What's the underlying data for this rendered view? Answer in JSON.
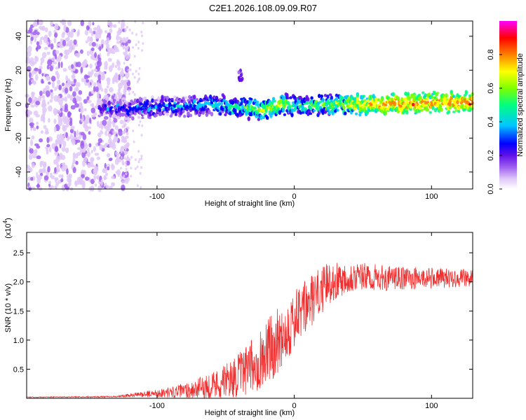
{
  "title": "C2E1.2026.108.09.09.R07",
  "chart_data": [
    {
      "type": "heatmap",
      "xlabel": "Height of straight line (km)",
      "ylabel": "Frequency (Hz)",
      "xlim": [
        -195,
        130
      ],
      "ylim": [
        -50,
        49
      ],
      "x_ticks": [
        -100,
        0,
        100
      ],
      "y_ticks": [
        -40,
        -20,
        0,
        20,
        40
      ],
      "x_tick_labels": [
        "-100",
        "0",
        "100"
      ],
      "y_tick_labels": [
        "-40",
        "-20",
        "0",
        "20",
        "40"
      ],
      "colorbar": {
        "label": "Normalized spectral amplitude",
        "range": [
          0,
          1
        ],
        "ticks": [
          0.0,
          0.2,
          0.4,
          0.6,
          0.8
        ],
        "tick_labels": [
          "0.0",
          "0.2",
          "0.4",
          "0.6",
          "0.8"
        ],
        "colors": [
          "#ffffff",
          "#e0c8f8",
          "#a060f0",
          "#6010e8",
          "#0000ff",
          "#00c8ff",
          "#00ff80",
          "#80ff00",
          "#ffff00",
          "#ff8000",
          "#ff0000",
          "#ff00ff"
        ]
      },
      "ridge": [
        {
          "x": -140,
          "y": -2,
          "amp": 0.35
        },
        {
          "x": -120,
          "y": -3,
          "amp": 0.4
        },
        {
          "x": -100,
          "y": -2,
          "amp": 0.45
        },
        {
          "x": -80,
          "y": -1,
          "amp": 0.45
        },
        {
          "x": -60,
          "y": 0,
          "amp": 0.5
        },
        {
          "x": -40,
          "y": -2,
          "amp": 0.55
        },
        {
          "x": -20,
          "y": -3,
          "amp": 0.7
        },
        {
          "x": -10,
          "y": 0,
          "amp": 0.7
        },
        {
          "x": 0,
          "y": -1,
          "amp": 0.55
        },
        {
          "x": 20,
          "y": -1,
          "amp": 0.6
        },
        {
          "x": 40,
          "y": 0,
          "amp": 0.7
        },
        {
          "x": 60,
          "y": 0,
          "amp": 0.8
        },
        {
          "x": 80,
          "y": 0,
          "amp": 0.85
        },
        {
          "x": 100,
          "y": 1,
          "amp": 0.8
        },
        {
          "x": 130,
          "y": 1,
          "amp": 0.85
        }
      ],
      "noise_region_x": [
        -195,
        -130
      ],
      "feature": {
        "x": -39,
        "y": 17,
        "amp": 0.3
      }
    },
    {
      "type": "line",
      "xlabel": "Height of straight line (km)",
      "ylabel": "SNR (10 * v/v)",
      "y_multiplier": "(x10",
      "y_multiplier_exp": "4",
      "y_multiplier_close": ")",
      "xlim": [
        -195,
        130
      ],
      "ylim": [
        0,
        2.85
      ],
      "x_ticks": [
        -100,
        0,
        100
      ],
      "y_ticks": [
        0.5,
        1.0,
        1.5,
        2.0,
        2.5
      ],
      "x_tick_labels": [
        "-100",
        "0",
        "100"
      ],
      "y_tick_labels": [
        "0.5",
        "1.0",
        "1.5",
        "2.0",
        "2.5"
      ],
      "color": "#f03030",
      "envelope": [
        {
          "x": -195,
          "base": 0.02,
          "spread": 0.01
        },
        {
          "x": -130,
          "base": 0.03,
          "spread": 0.02
        },
        {
          "x": -110,
          "base": 0.08,
          "spread": 0.08
        },
        {
          "x": -90,
          "base": 0.12,
          "spread": 0.15
        },
        {
          "x": -70,
          "base": 0.2,
          "spread": 0.3
        },
        {
          "x": -50,
          "base": 0.35,
          "spread": 0.5
        },
        {
          "x": -35,
          "base": 0.55,
          "spread": 0.7
        },
        {
          "x": -20,
          "base": 0.9,
          "spread": 1.0
        },
        {
          "x": -5,
          "base": 1.3,
          "spread": 0.9
        },
        {
          "x": 10,
          "base": 1.7,
          "spread": 0.8
        },
        {
          "x": 25,
          "base": 2.05,
          "spread": 0.6
        },
        {
          "x": 40,
          "base": 2.15,
          "spread": 0.45
        },
        {
          "x": 70,
          "base": 2.1,
          "spread": 0.35
        },
        {
          "x": 100,
          "base": 2.1,
          "spread": 0.3
        },
        {
          "x": 130,
          "base": 2.1,
          "spread": 0.25
        }
      ]
    }
  ]
}
